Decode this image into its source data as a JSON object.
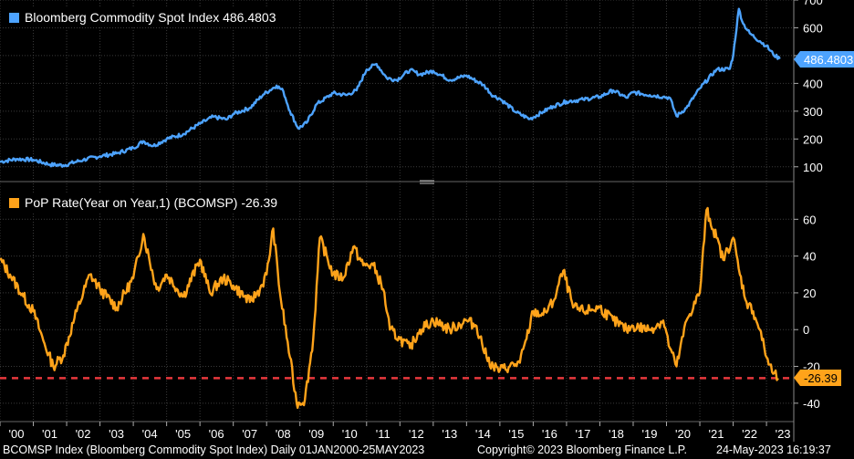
{
  "footer": {
    "left": "BCOMSP Index (Bloomberg Commodity Spot Index)  Daily 01JAN2000-25MAY2023",
    "middle": "Copyright© 2023 Bloomberg Finance L.P.",
    "right": "24-May-2023 16:19:37"
  },
  "colors": {
    "blue": "#4da3ff",
    "orange": "#ffa31a",
    "ref_line": "#e8383d",
    "grid": "#3a3a3a"
  },
  "chart_data": [
    {
      "type": "line",
      "legend": "Bloomberg Commodity Spot Index 486.4803",
      "last_value_label": "486.4803",
      "last_value": 486.4803,
      "x": [
        2000.0,
        2000.5,
        2001.0,
        2001.5,
        2001.9,
        2002.5,
        2003.0,
        2003.5,
        2004.0,
        2004.3,
        2004.6,
        2005.0,
        2005.5,
        2006.0,
        2006.4,
        2006.8,
        2007.0,
        2007.5,
        2007.9,
        2008.3,
        2008.5,
        2008.7,
        2008.95,
        2009.2,
        2009.5,
        2010.0,
        2010.4,
        2010.7,
        2011.0,
        2011.3,
        2011.6,
        2011.9,
        2012.3,
        2012.6,
        2013.0,
        2013.5,
        2014.0,
        2014.5,
        2014.8,
        2015.0,
        2015.5,
        2015.9,
        2016.3,
        2016.6,
        2017.0,
        2017.5,
        2018.0,
        2018.4,
        2018.8,
        2019.0,
        2019.5,
        2019.9,
        2020.1,
        2020.3,
        2020.6,
        2021.0,
        2021.5,
        2021.9,
        2022.0,
        2022.17,
        2022.3,
        2022.5,
        2022.8,
        2023.0,
        2023.2,
        2023.4
      ],
      "y": [
        118,
        128,
        125,
        108,
        105,
        125,
        138,
        148,
        168,
        192,
        175,
        200,
        218,
        255,
        280,
        270,
        290,
        312,
        360,
        392,
        372,
        300,
        238,
        258,
        325,
        365,
        358,
        375,
        450,
        470,
        420,
        412,
        448,
        432,
        445,
        412,
        428,
        395,
        355,
        345,
        295,
        272,
        298,
        318,
        335,
        342,
        352,
        375,
        348,
        368,
        358,
        352,
        348,
        282,
        312,
        382,
        450,
        452,
        500,
        668,
        615,
        580,
        552,
        535,
        505,
        488
      ],
      "ylim": [
        50,
        700
      ],
      "yticks": [
        100,
        200,
        300,
        400,
        500,
        600,
        700
      ],
      "ytick_labels": [
        "100",
        "200",
        "300",
        "400",
        "500",
        "600",
        "700"
      ]
    },
    {
      "type": "line",
      "legend": "PoP Rate(Year on Year,1) (BCOMSP) -26.39",
      "last_value_label": "-26.39",
      "last_value": -26.39,
      "reference_line": -26.39,
      "x": [
        2000.0,
        2000.3,
        2000.7,
        2001.0,
        2001.3,
        2001.6,
        2001.9,
        2002.3,
        2002.7,
        2003.0,
        2003.5,
        2004.0,
        2004.3,
        2004.7,
        2005.0,
        2005.5,
        2006.0,
        2006.3,
        2006.7,
        2007.0,
        2007.5,
        2007.8,
        2008.0,
        2008.2,
        2008.4,
        2008.7,
        2008.9,
        2009.15,
        2009.4,
        2009.6,
        2010.0,
        2010.3,
        2010.6,
        2010.9,
        2011.2,
        2011.5,
        2011.7,
        2012.0,
        2012.3,
        2012.6,
        2013.0,
        2013.5,
        2014.0,
        2014.3,
        2014.6,
        2014.8,
        2015.0,
        2015.3,
        2015.6,
        2015.8,
        2016.0,
        2016.3,
        2016.6,
        2016.9,
        2017.2,
        2017.5,
        2018.0,
        2018.4,
        2018.8,
        2019.0,
        2019.5,
        2019.9,
        2020.1,
        2020.3,
        2020.6,
        2021.0,
        2021.2,
        2021.5,
        2021.7,
        2022.0,
        2022.2,
        2022.4,
        2022.6,
        2022.8,
        2023.0,
        2023.2,
        2023.35
      ],
      "y": [
        38,
        30,
        18,
        10,
        -6,
        -20,
        -14,
        10,
        30,
        22,
        12,
        28,
        52,
        22,
        30,
        18,
        38,
        20,
        28,
        24,
        15,
        22,
        30,
        55,
        20,
        -15,
        -40,
        -38,
        -5,
        50,
        30,
        28,
        45,
        35,
        35,
        22,
        0,
        -5,
        -10,
        0,
        5,
        0,
        5,
        2,
        -15,
        -20,
        -22,
        -20,
        -18,
        -5,
        10,
        8,
        15,
        32,
        12,
        10,
        12,
        5,
        0,
        2,
        0,
        5,
        -10,
        -20,
        5,
        20,
        65,
        50,
        38,
        50,
        30,
        15,
        10,
        0,
        -15,
        -24,
        -26.39
      ],
      "ylim": [
        -50,
        80
      ],
      "yticks": [
        -40,
        -20,
        0,
        20,
        40,
        60
      ],
      "ytick_labels": [
        "-40",
        "-20",
        "0",
        "20",
        "40",
        "60"
      ]
    }
  ],
  "x_axis": {
    "range": [
      2000.0,
      2023.6
    ],
    "ticks": [
      2000,
      2001,
      2002,
      2003,
      2004,
      2005,
      2006,
      2007,
      2008,
      2009,
      2010,
      2011,
      2012,
      2013,
      2014,
      2015,
      2016,
      2017,
      2018,
      2019,
      2020,
      2021,
      2022,
      2023
    ],
    "tick_labels": [
      "'00",
      "'01",
      "'02",
      "'03",
      "'04",
      "'05",
      "'06",
      "'07",
      "'08",
      "'09",
      "'10",
      "'11",
      "'12",
      "'13",
      "'14",
      "'15",
      "'16",
      "'17",
      "'18",
      "'19",
      "'20",
      "'21",
      "'22",
      "'23"
    ]
  }
}
